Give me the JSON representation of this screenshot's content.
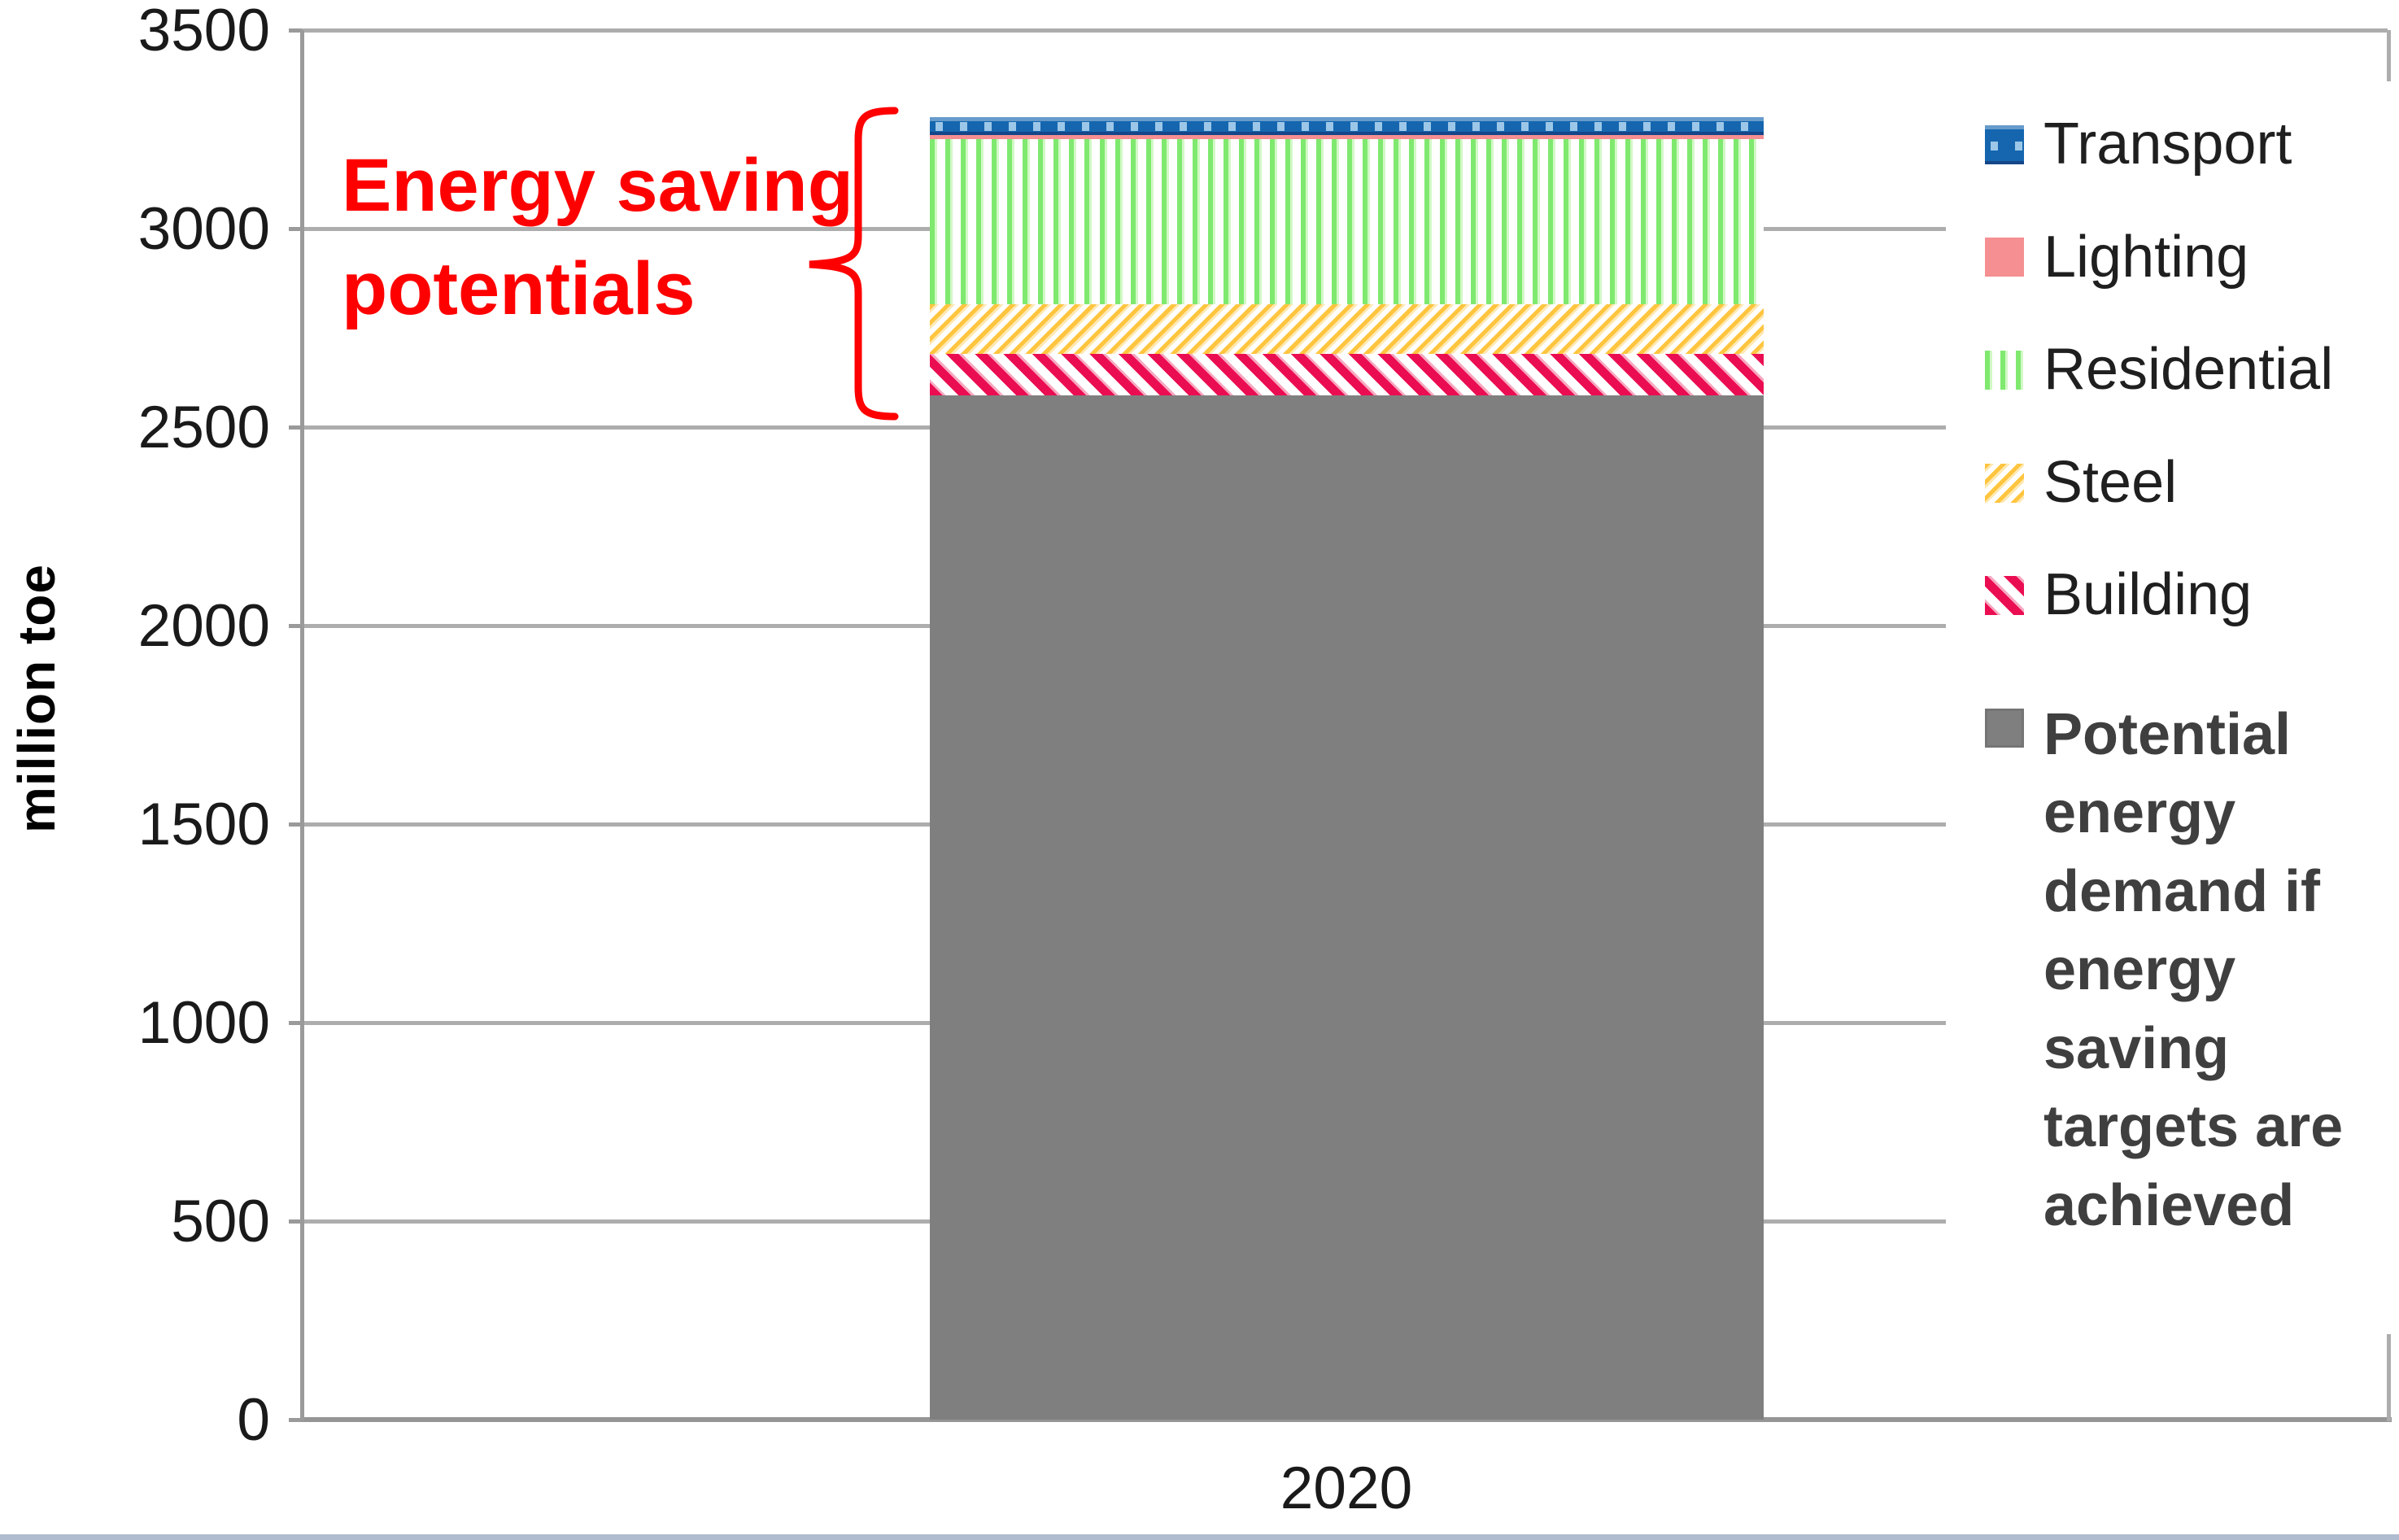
{
  "axes": {
    "y_title": "million toe",
    "y_ticks": [
      3500,
      3000,
      2500,
      2000,
      1500,
      1000,
      500,
      0
    ],
    "x_tick": "2020"
  },
  "annotation": {
    "line1": "Energy saving",
    "line2": "potentials",
    "color": "#FE0000"
  },
  "legend": {
    "items": [
      {
        "label": "Transport",
        "pattern": "transport",
        "bold": false
      },
      {
        "label": "Lighting",
        "pattern": "lighting",
        "bold": false
      },
      {
        "label": "Residential",
        "pattern": "residential",
        "bold": false
      },
      {
        "label": "Steel",
        "pattern": "steel",
        "bold": false
      },
      {
        "label": "Building",
        "pattern": "building",
        "bold": false
      },
      {
        "label": "Potential energy demand if energy saving targets are achieved",
        "pattern": "demand",
        "bold": true
      }
    ]
  },
  "chart_data": {
    "type": "bar",
    "stacked": true,
    "categories": [
      "2020"
    ],
    "title": "",
    "xlabel": "",
    "ylabel": "million toe",
    "ylim": [
      0,
      3500
    ],
    "ytick_interval": 500,
    "grid": true,
    "legend_position": "right",
    "annotation": "Energy saving potentials",
    "series": [
      {
        "name": "Potential energy demand if energy saving targets are achieved",
        "values": [
          2580
        ],
        "color": "#7F7F7F",
        "pattern": "demand"
      },
      {
        "name": "Building",
        "values": [
          105
        ],
        "color": "#EB0D52",
        "pattern": "building"
      },
      {
        "name": "Steel",
        "values": [
          125
        ],
        "color": "#FFC53F",
        "pattern": "steel"
      },
      {
        "name": "Residential",
        "values": [
          415
        ],
        "color": "#7FE96F",
        "pattern": "residential"
      },
      {
        "name": "Lighting",
        "values": [
          10
        ],
        "color": "#F58F92",
        "pattern": "lighting"
      },
      {
        "name": "Transport",
        "values": [
          45
        ],
        "color": "#1566AF",
        "pattern": "transport"
      }
    ],
    "stack_total": [
      3280
    ],
    "series_note": "series listed bottom-to-top of stack; values in million toe"
  }
}
